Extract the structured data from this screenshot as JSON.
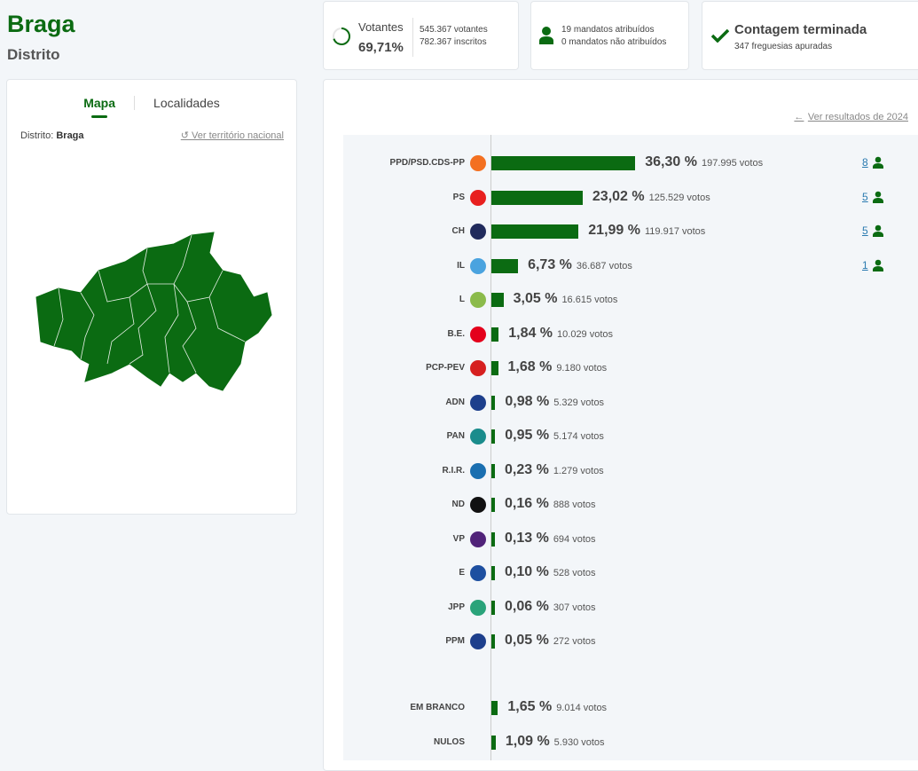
{
  "header": {
    "title": "Braga",
    "subtitle": "Distrito"
  },
  "stats": {
    "turnout_label": "Votantes",
    "turnout_pct": "69,71%",
    "turnout_fraction": 0.6971,
    "voters": "545.367 votantes",
    "registered": "782.367 inscritos",
    "seats_assigned": "19 mandatos atribuídos",
    "seats_unassigned": "0 mandatos não atribuídos",
    "count_status": "Contagem terminada",
    "parishes": "347 freguesias apuradas"
  },
  "map_panel": {
    "tabs": [
      {
        "label": "Mapa",
        "active": true
      },
      {
        "label": "Localidades",
        "active": false
      }
    ],
    "district_label": "Distrito:",
    "district_value": "Braga",
    "national_link": "Ver território nacional"
  },
  "results": {
    "previous_link": "Ver resultados de 2024",
    "parties": [
      {
        "name": "PPD/PSD.CDS-PP",
        "pct": "36,30 %",
        "value": 36.3,
        "votes": "197.995 votos",
        "seats": "8",
        "logo": "psd-cds-logo",
        "color": "#f37021"
      },
      {
        "name": "PS",
        "pct": "23,02 %",
        "value": 23.02,
        "votes": "125.529 votos",
        "seats": "5",
        "logo": "ps-logo",
        "color": "#e8201f"
      },
      {
        "name": "CH",
        "pct": "21,99 %",
        "value": 21.99,
        "votes": "119.917 votos",
        "seats": "5",
        "logo": "chega-logo",
        "color": "#202a5c"
      },
      {
        "name": "IL",
        "pct": "6,73 %",
        "value": 6.73,
        "votes": "36.687 votos",
        "seats": "1",
        "logo": "il-logo",
        "color": "#4aa3df"
      },
      {
        "name": "L",
        "pct": "3,05 %",
        "value": 3.05,
        "votes": "16.615 votos",
        "seats": "",
        "logo": "livre-logo",
        "color": "#8bbb4b"
      },
      {
        "name": "B.E.",
        "pct": "1,84 %",
        "value": 1.84,
        "votes": "10.029 votos",
        "seats": "",
        "logo": "be-logo",
        "color": "#e4001b"
      },
      {
        "name": "PCP-PEV",
        "pct": "1,68 %",
        "value": 1.68,
        "votes": "9.180 votos",
        "seats": "",
        "logo": "cdu-logo",
        "color": "#d62020"
      },
      {
        "name": "ADN",
        "pct": "0,98 %",
        "value": 0.98,
        "votes": "5.329 votos",
        "seats": "",
        "logo": "adn-logo",
        "color": "#1d3f8c"
      },
      {
        "name": "PAN",
        "pct": "0,95 %",
        "value": 0.95,
        "votes": "5.174 votos",
        "seats": "",
        "logo": "pan-logo",
        "color": "#1a8c8c"
      },
      {
        "name": "R.I.R.",
        "pct": "0,23 %",
        "value": 0.23,
        "votes": "1.279 votos",
        "seats": "",
        "logo": "rir-logo",
        "color": "#1a6fb0"
      },
      {
        "name": "ND",
        "pct": "0,16 %",
        "value": 0.16,
        "votes": "888 votos",
        "seats": "",
        "logo": "nova-direita-logo",
        "color": "#111111"
      },
      {
        "name": "VP",
        "pct": "0,13 %",
        "value": 0.13,
        "votes": "694 votos",
        "seats": "",
        "logo": "volt-logo",
        "color": "#502379"
      },
      {
        "name": "E",
        "pct": "0,10 %",
        "value": 0.1,
        "votes": "528 votos",
        "seats": "",
        "logo": "ergue-te-logo",
        "color": "#1d4fa0"
      },
      {
        "name": "JPP",
        "pct": "0,06 %",
        "value": 0.06,
        "votes": "307 votos",
        "seats": "",
        "logo": "jpp-logo",
        "color": "#2aa37a"
      },
      {
        "name": "PPM",
        "pct": "0,05 %",
        "value": 0.05,
        "votes": "272 votos",
        "seats": "",
        "logo": "ppm-logo",
        "color": "#1d3f8c"
      }
    ],
    "others": [
      {
        "name": "EM BRANCO",
        "pct": "1,65 %",
        "value": 1.65,
        "votes": "9.014 votos"
      },
      {
        "name": "NULOS",
        "pct": "1,09 %",
        "value": 1.09,
        "votes": "5.930 votos"
      }
    ]
  },
  "colors": {
    "accent": "#0b6b12"
  }
}
